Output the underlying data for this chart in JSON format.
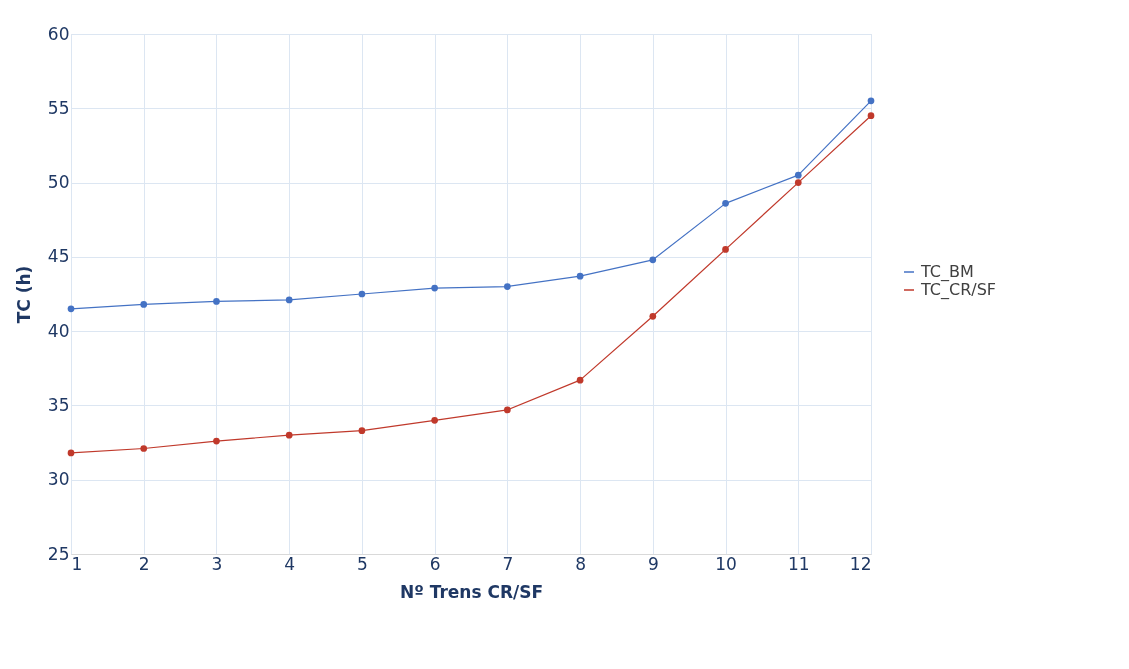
{
  "chart_data": {
    "type": "line",
    "xlabel": "Nº Trens CR/SF",
    "ylabel": "TC (h)",
    "x": [
      1,
      2,
      3,
      4,
      5,
      6,
      7,
      8,
      9,
      10,
      11,
      12
    ],
    "series": [
      {
        "name": "TC_BM",
        "color": "#4472c4",
        "values": [
          41.5,
          41.8,
          42.0,
          42.1,
          42.5,
          42.9,
          43.0,
          43.7,
          44.8,
          48.6,
          50.5,
          55.5
        ]
      },
      {
        "name": "TC_CR/SF",
        "color": "#c0392b",
        "values": [
          31.8,
          32.1,
          32.6,
          33.0,
          33.3,
          34.0,
          34.7,
          36.7,
          41.0,
          45.5,
          50.0,
          54.5
        ]
      }
    ],
    "xlim": [
      1,
      12
    ],
    "xticks": [
      1,
      2,
      3,
      4,
      5,
      6,
      7,
      8,
      9,
      10,
      11,
      12
    ],
    "ylim": [
      25,
      60
    ],
    "yticks": [
      25,
      30,
      35,
      40,
      45,
      50,
      55,
      60
    ],
    "grid": true,
    "legend": "right",
    "marker": "circle",
    "line_style": "solid"
  }
}
